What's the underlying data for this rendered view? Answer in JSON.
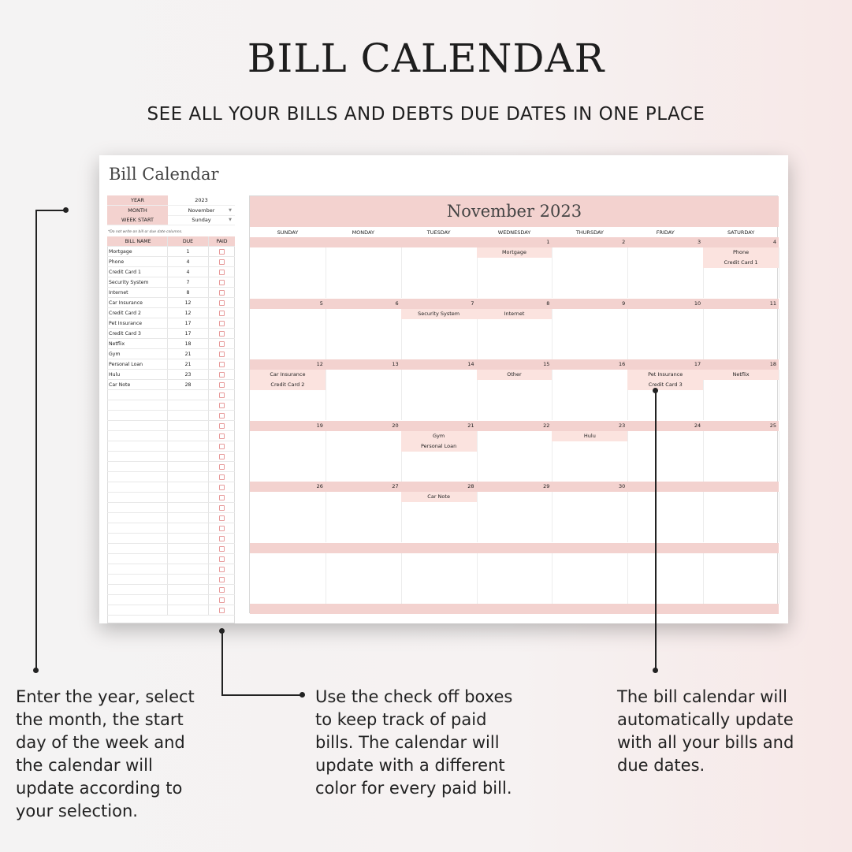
{
  "header": {
    "title": "BILL CALENDAR",
    "subtitle": "SEE ALL YOUR BILLS AND DEBTS DUE DATES IN ONE PLACE"
  },
  "sheet": {
    "title": "Bill Calendar",
    "settings": [
      {
        "label": "YEAR",
        "value": "2023",
        "dropdown": false
      },
      {
        "label": "MONTH",
        "value": "November",
        "dropdown": true
      },
      {
        "label": "WEEK START",
        "value": "Sunday",
        "dropdown": true
      }
    ],
    "note": "*Do not write on bill or due date columns.",
    "columns": [
      "BILL NAME",
      "DUE",
      "PAID"
    ],
    "bills": [
      {
        "name": "Mortgage",
        "due": "1"
      },
      {
        "name": "Phone",
        "due": "4"
      },
      {
        "name": "Credit Card 1",
        "due": "4"
      },
      {
        "name": "Security System",
        "due": "7"
      },
      {
        "name": "Internet",
        "due": "8"
      },
      {
        "name": "Car Insurance",
        "due": "12"
      },
      {
        "name": "Credit Card 2",
        "due": "12"
      },
      {
        "name": "Pet Insurance",
        "due": "17"
      },
      {
        "name": "Credit Card 3",
        "due": "17"
      },
      {
        "name": "Netflix",
        "due": "18"
      },
      {
        "name": "Gym",
        "due": "21"
      },
      {
        "name": "Personal Loan",
        "due": "21"
      },
      {
        "name": "Hulu",
        "due": "23"
      },
      {
        "name": "Car Note",
        "due": "28"
      }
    ],
    "empty_rows": 22
  },
  "calendar": {
    "title": "November 2023",
    "days": [
      "SUNDAY",
      "MONDAY",
      "TUESDAY",
      "WEDNESDAY",
      "THURSDAY",
      "FRIDAY",
      "SATURDAY"
    ],
    "weeks": [
      [
        "",
        "",
        "",
        "1",
        "2",
        "3",
        "4"
      ],
      [
        "5",
        "6",
        "7",
        "8",
        "9",
        "10",
        "11"
      ],
      [
        "12",
        "13",
        "14",
        "15",
        "16",
        "17",
        "18"
      ],
      [
        "19",
        "20",
        "21",
        "22",
        "23",
        "24",
        "25"
      ],
      [
        "26",
        "27",
        "28",
        "29",
        "30",
        "",
        ""
      ],
      [
        "",
        "",
        "",
        "",
        "",
        "",
        ""
      ],
      [
        "",
        "",
        "",
        "",
        "",
        "",
        ""
      ]
    ],
    "events": {
      "1": [
        "Mortgage"
      ],
      "4": [
        "Phone",
        "Credit Card 1"
      ],
      "7": [
        "Security System"
      ],
      "8": [
        "Internet"
      ],
      "12": [
        "Car Insurance",
        "Credit Card 2"
      ],
      "15": [
        "Other"
      ],
      "17": [
        "Pet Insurance",
        "Credit Card 3"
      ],
      "18": [
        "Netflix"
      ],
      "21": [
        "Gym",
        "Personal Loan"
      ],
      "23": [
        "Hulu"
      ],
      "28": [
        "Car Note"
      ]
    }
  },
  "annotations": [
    "Enter the year, select the month, the start day of the week and the calendar will update according to your selection.",
    "Use the check off boxes to keep track of paid bills. The calendar will update with a different color for every paid bill.",
    "The bill calendar will automatically update with all your bills and due dates."
  ],
  "colors": {
    "accent": "#f3d2cf",
    "event": "#fbe3df",
    "checkbox": "#e79a9a"
  }
}
